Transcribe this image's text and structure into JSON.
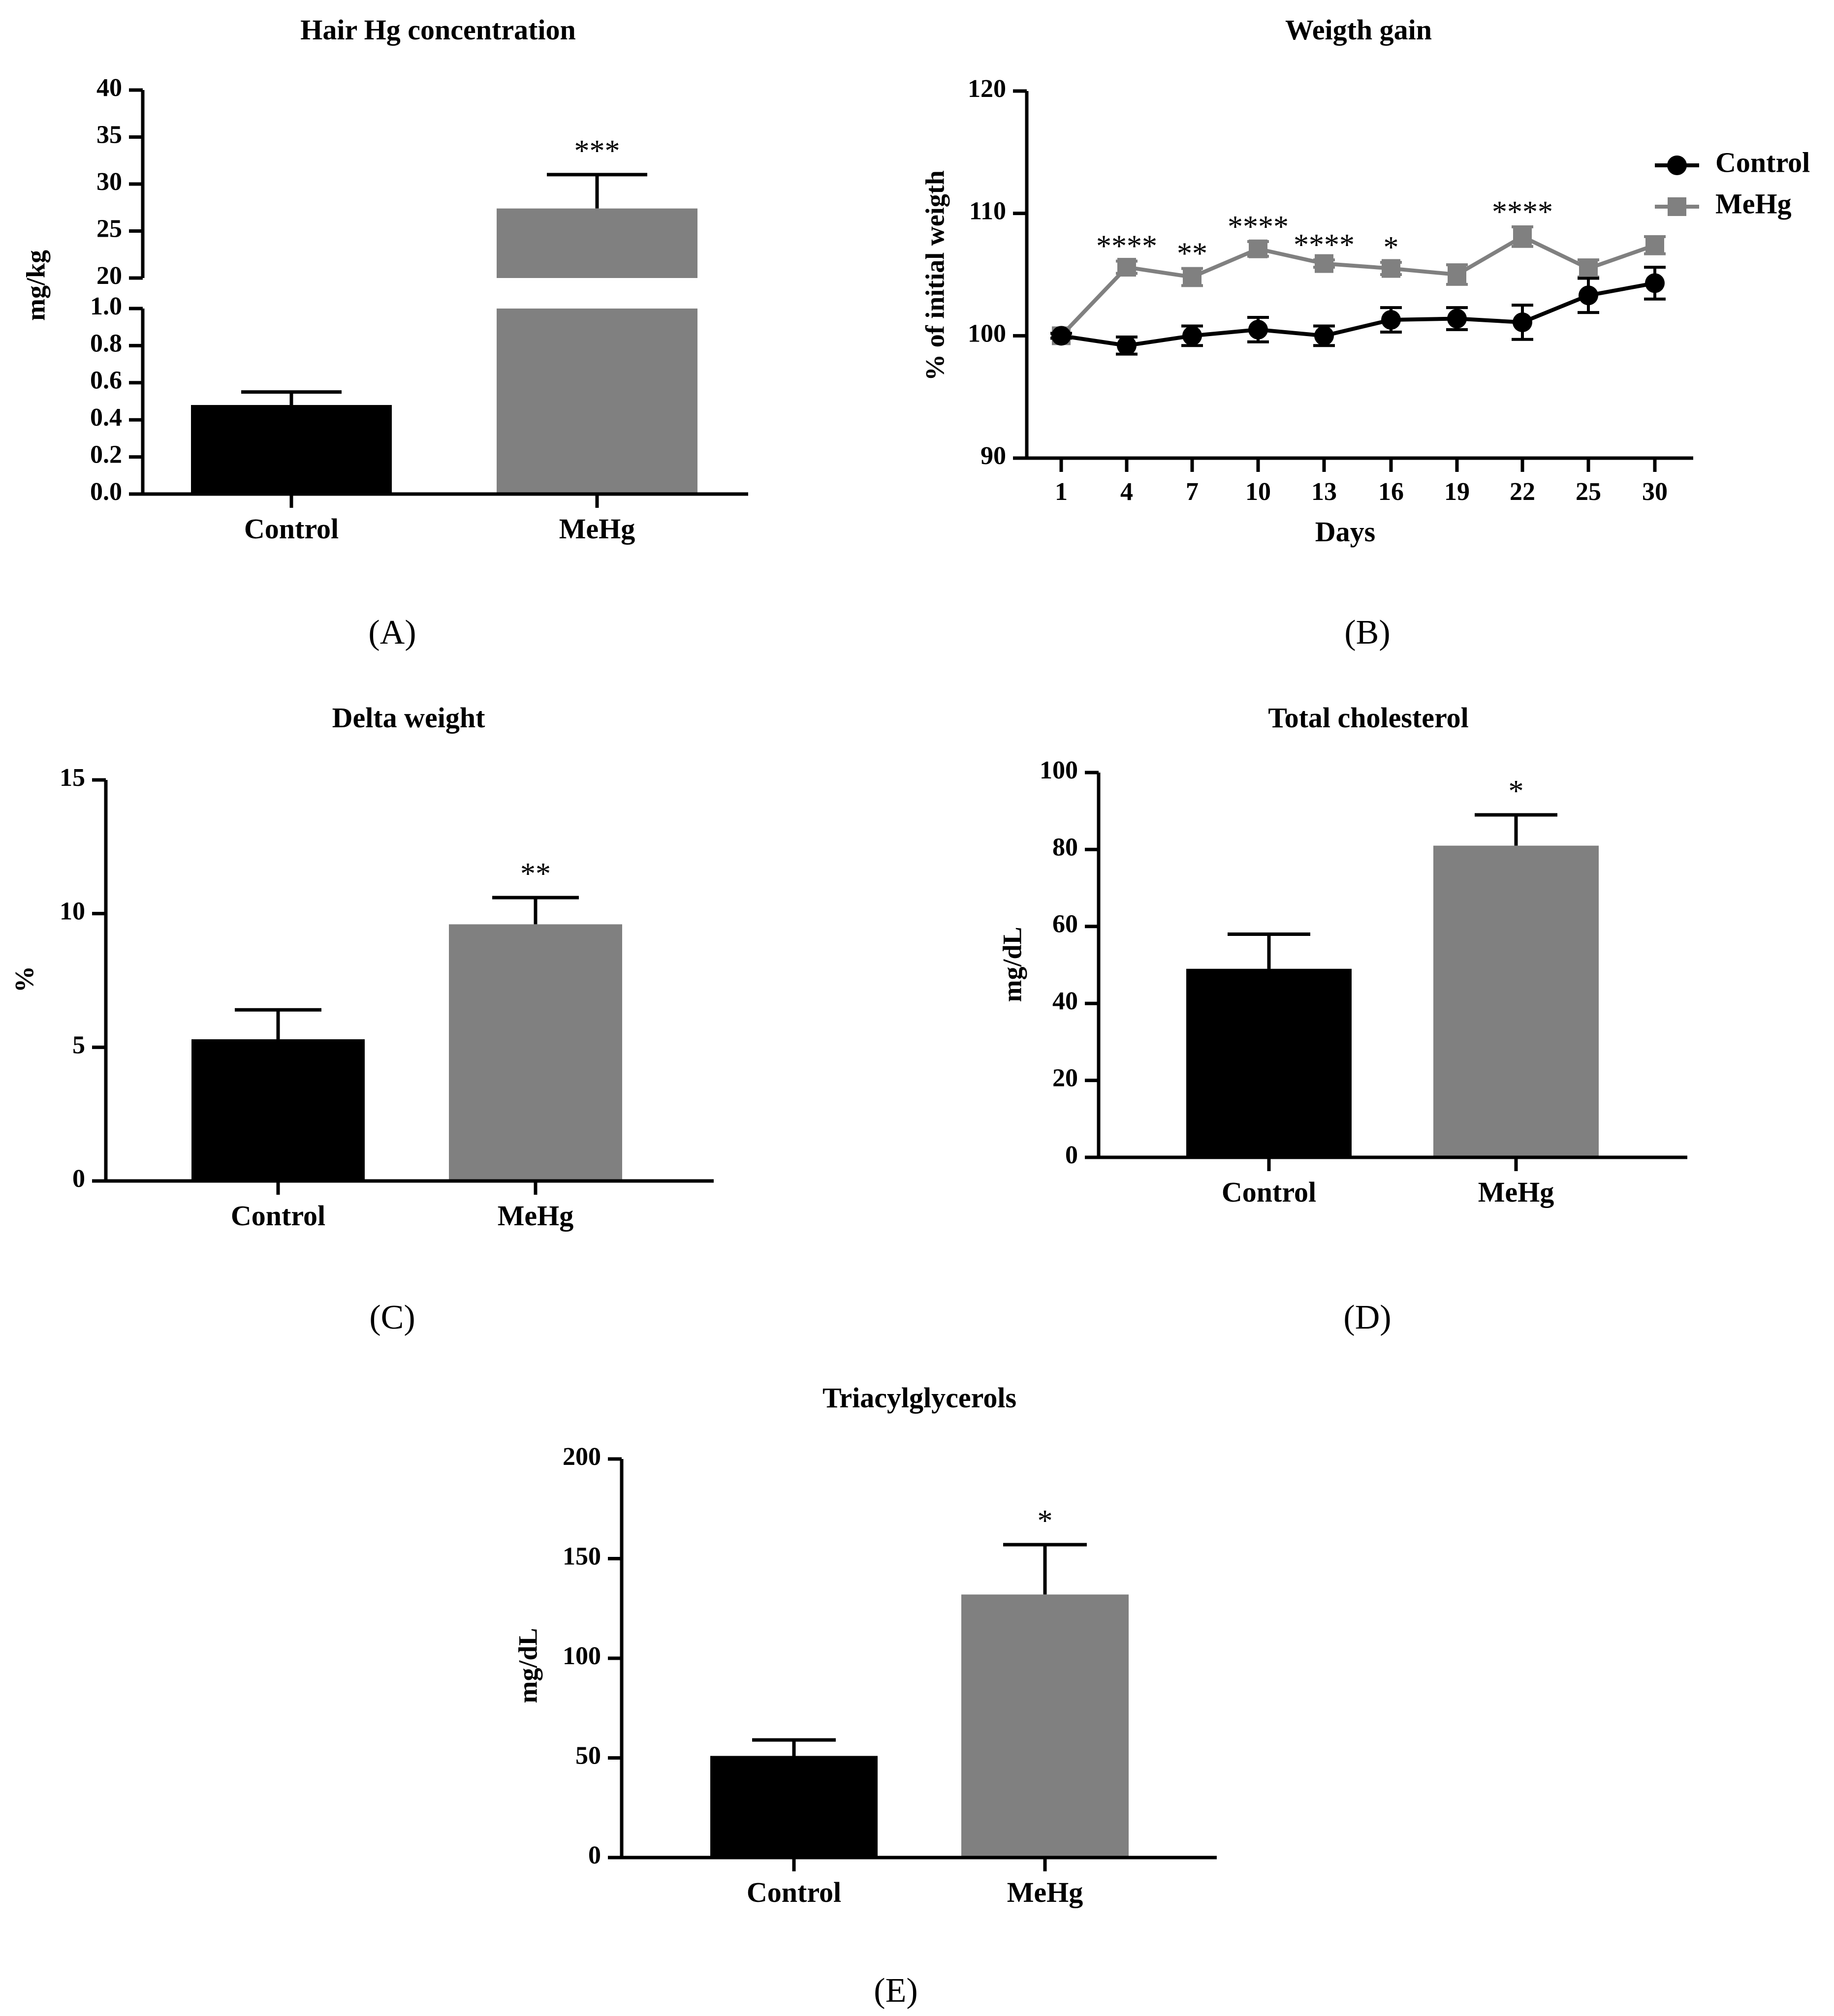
{
  "colors": {
    "control": "#000000",
    "mehg": "#808080",
    "axis": "#000000"
  },
  "panels": {
    "A": {
      "label": "(A)"
    },
    "B": {
      "label": "(B)"
    },
    "C": {
      "label": "(C)"
    },
    "D": {
      "label": "(D)"
    },
    "E": {
      "label": "(E)"
    }
  },
  "chart_data": [
    {
      "id": "A",
      "type": "bar",
      "title": "Hair Hg concentration",
      "xlabel": "",
      "ylabel": "mg/kg",
      "categories": [
        "Control",
        "MeHg"
      ],
      "values": [
        0.48,
        27.4
      ],
      "errors": [
        0.07,
        3.6
      ],
      "significance": [
        "",
        "***"
      ],
      "axis_break": {
        "lower_range": [
          0,
          1.0
        ],
        "upper_range": [
          20,
          40
        ]
      },
      "lower_ticks": [
        "0.0",
        "0.2",
        "0.4",
        "0.6",
        "0.8",
        "1.0"
      ],
      "upper_ticks": [
        "20",
        "25",
        "30",
        "35",
        "40"
      ]
    },
    {
      "id": "B",
      "type": "line",
      "title": "Weigth gain",
      "xlabel": "Days",
      "ylabel": "% of initial weigth",
      "x": [
        1,
        4,
        7,
        10,
        13,
        16,
        19,
        22,
        25,
        30
      ],
      "x_ticks": [
        "1",
        "4",
        "7",
        "10",
        "13",
        "16",
        "19",
        "22",
        "25",
        "30"
      ],
      "ylim": [
        90,
        120
      ],
      "y_ticks": [
        "90",
        "100",
        "110",
        "120"
      ],
      "series": [
        {
          "name": "Control",
          "marker": "circle",
          "values": [
            100.0,
            99.2,
            100.0,
            100.5,
            100.0,
            101.3,
            101.4,
            101.1,
            103.3,
            104.3
          ],
          "errors": [
            0.2,
            0.7,
            0.8,
            1.0,
            0.8,
            1.0,
            0.9,
            1.4,
            1.4,
            1.3
          ]
        },
        {
          "name": "MeHg",
          "marker": "square",
          "values": [
            100.0,
            105.6,
            104.8,
            107.1,
            105.9,
            105.5,
            105.0,
            108.1,
            105.5,
            107.4
          ],
          "errors": [
            0.2,
            0.5,
            0.7,
            0.6,
            0.3,
            0.5,
            0.8,
            0.8,
            0.7,
            0.7
          ]
        }
      ],
      "significance": [
        "",
        "****",
        "**",
        "****",
        "****",
        "*",
        "",
        "****",
        "",
        ""
      ],
      "legend": "top-right"
    },
    {
      "id": "C",
      "type": "bar",
      "title": "Delta weight",
      "xlabel": "",
      "ylabel": "%",
      "categories": [
        "Control",
        "MeHg"
      ],
      "values": [
        5.3,
        9.6
      ],
      "errors": [
        1.1,
        1.0
      ],
      "significance": [
        "",
        "**"
      ],
      "ylim": [
        0,
        15
      ],
      "y_ticks": [
        "0",
        "5",
        "10",
        "15"
      ]
    },
    {
      "id": "D",
      "type": "bar",
      "title": "Total cholesterol",
      "xlabel": "",
      "ylabel": "mg/dL",
      "categories": [
        "Control",
        "MeHg"
      ],
      "values": [
        49,
        81
      ],
      "errors": [
        9,
        8
      ],
      "significance": [
        "",
        "*"
      ],
      "ylim": [
        0,
        100
      ],
      "y_ticks": [
        "0",
        "20",
        "40",
        "60",
        "80",
        "100"
      ]
    },
    {
      "id": "E",
      "type": "bar",
      "title": "Triacylglycerols",
      "xlabel": "",
      "ylabel": "mg/dL",
      "categories": [
        "Control",
        "MeHg"
      ],
      "values": [
        51,
        132
      ],
      "errors": [
        8,
        25
      ],
      "significance": [
        "",
        "*"
      ],
      "ylim": [
        0,
        200
      ],
      "y_ticks": [
        "0",
        "50",
        "100",
        "150",
        "200"
      ]
    }
  ]
}
